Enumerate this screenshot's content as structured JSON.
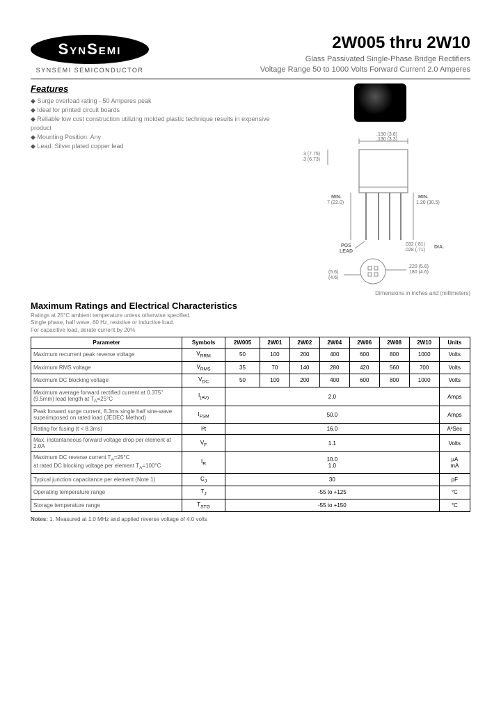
{
  "header": {
    "logo_text": "SynSemi",
    "logo_subtitle": "SYNSEMI SEMICONDUCTOR",
    "title": "2W005 thru 2W10",
    "subtitle_line1": "Glass Passivated Single-Phase Bridge Rectifiers",
    "subtitle_line2": "Voltage Range 50 to 1000 Volts    Forward Current 2.0 Amperes"
  },
  "features": {
    "heading": "Features",
    "items": [
      "Surge overload rating - 50 Amperes peak",
      "Ideal for printed circuit boards",
      "Reliable low cost construction utilizing molded plastic technique results in expensive product",
      "Mounting Position: Any",
      "Lead: Silver plated copper lead"
    ]
  },
  "diagram": {
    "dim_top": ".150 (3.8)\n.130 (3.3)",
    "dim_side": ".3 (7.75)\n.3 (6.73)",
    "dim_min_left": "MIN.\n7 (22.0)",
    "dim_min_right": "MIN.\n1.20 (30.5)",
    "pos_lead": "POS\nLEAD",
    "dia": ".032 (.81)\n.028 (.71)",
    "dia_label": "DIA.",
    "round_a": ".220 (5.6)\n.180 (4.6)",
    "round_b": "(5.6)\n(4.6)",
    "note": "Dimensions in inches and (millimeters)"
  },
  "ratings": {
    "heading": "Maximum Ratings and Electrical Characteristics",
    "sub1": "Ratings at 25°C ambient temperature unless otherwise specified.",
    "sub2": "Single phase, half wave, 60 Hz, resistive or inductive load.",
    "sub3": "For capacitive load, derate current by 20%",
    "columns": [
      "Parameter",
      "Symbols",
      "2W005",
      "2W01",
      "2W02",
      "2W04",
      "2W06",
      "2W08",
      "2W10",
      "Units"
    ],
    "rows": [
      {
        "param": "Maximum recurrent peak reverse voltage",
        "sym": "V<sub>RRM</sub>",
        "vals": [
          "50",
          "100",
          "200",
          "400",
          "600",
          "800",
          "1000"
        ],
        "unit": "Volts"
      },
      {
        "param": "Maximum RMS voltage",
        "sym": "V<sub>RMS</sub>",
        "vals": [
          "35",
          "70",
          "140",
          "280",
          "420",
          "560",
          "700"
        ],
        "unit": "Volts"
      },
      {
        "param": "Maximum DC blocking voltage",
        "sym": "V<sub>DC</sub>",
        "vals": [
          "50",
          "100",
          "200",
          "400",
          "600",
          "800",
          "1000"
        ],
        "unit": "Volts"
      },
      {
        "param": "Maximum average forward rectified current at 0.375\" (9.5mm) lead length at T<sub>A</sub>=25°C",
        "sym": "I<sub>(AV)</sub>",
        "span": "2.0",
        "unit": "Amps"
      },
      {
        "param": "Peak forward surge current, 8.3ms single half sine-wave superimposed on rated load (JEDEC Method)",
        "sym": "I<sub>FSM</sub>",
        "span": "50.0",
        "unit": "Amps"
      },
      {
        "param": "Rating for fusing (t < 8.3ms)",
        "sym": "I²t",
        "span": "16.0",
        "unit": "A²Sec"
      },
      {
        "param": "Max. instantaneous forward voltage drop per element at 2.0A",
        "sym": "V<sub>F</sub>",
        "span": "1.1",
        "unit": "Volts"
      },
      {
        "param": "Maximum DC reverse current    T<sub>A</sub>=25°C\nat rated DC blocking voltage per element    T<sub>A</sub>=100°C",
        "sym": "I<sub>R</sub>",
        "span": "10.0\n1.0",
        "unit": "µA\nmA"
      },
      {
        "param": "Typical junction capacitance per element (Note 1)",
        "sym": "C<sub>J</sub>",
        "span": "30",
        "unit": "pF"
      },
      {
        "param": "Operating temperature range",
        "sym": "T<sub>J</sub>",
        "span": "-55 to +125",
        "unit": "°C"
      },
      {
        "param": "Storage temperature range",
        "sym": "T<sub>STG</sub>",
        "span": "-55 to +150",
        "unit": "°C"
      }
    ]
  },
  "notes": {
    "label": "Notes:",
    "text": "1. Measured at 1.0 MHz and applied reverse voltage of 4.0 volts"
  },
  "style": {
    "text_color": "#000000",
    "muted_color": "#777777",
    "border_color": "#000000",
    "background": "#ffffff",
    "font_title_pt": 24,
    "font_heading_pt": 13,
    "font_body_pt": 9,
    "font_table_pt": 8
  }
}
